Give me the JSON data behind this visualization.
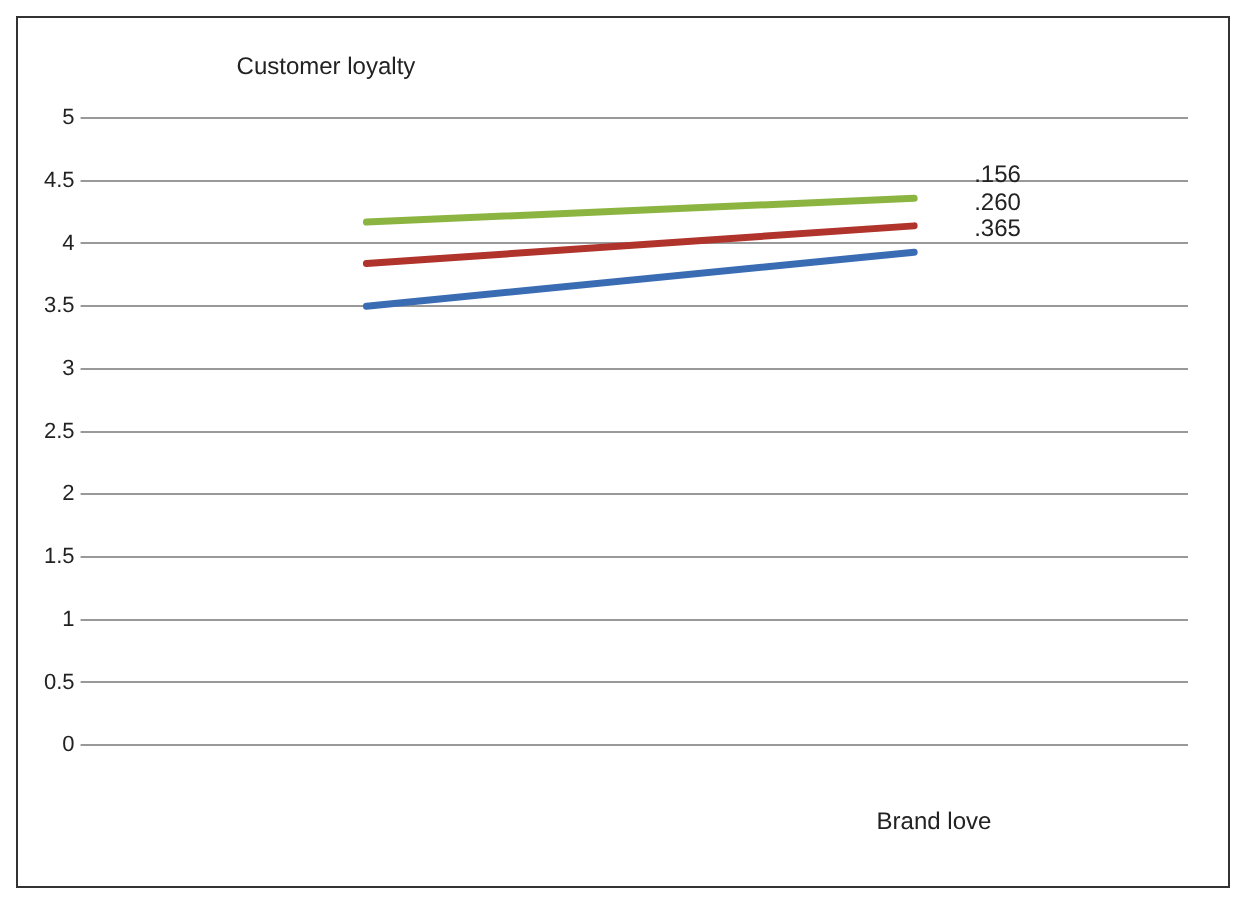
{
  "chart_data": {
    "type": "line",
    "xlabel": "Brand love",
    "ylabel": "Customer loyalty",
    "categories": [
      null,
      null
    ],
    "series": [
      {
        "name": ".156",
        "color": "#8cb440",
        "values": [
          4.17,
          4.36
        ]
      },
      {
        "name": ".260",
        "color": "#b0342c",
        "values": [
          3.84,
          4.14
        ]
      },
      {
        "name": ".365",
        "color": "#3a6cb4",
        "values": [
          3.5,
          3.93
        ]
      }
    ],
    "ylim": [
      0,
      5
    ],
    "yticks": [
      0,
      0.5,
      1,
      1.5,
      2,
      2.5,
      3,
      3.5,
      4,
      4.5,
      5
    ],
    "grid": "y",
    "legend": false,
    "marker": "none",
    "line_style": "solid"
  }
}
